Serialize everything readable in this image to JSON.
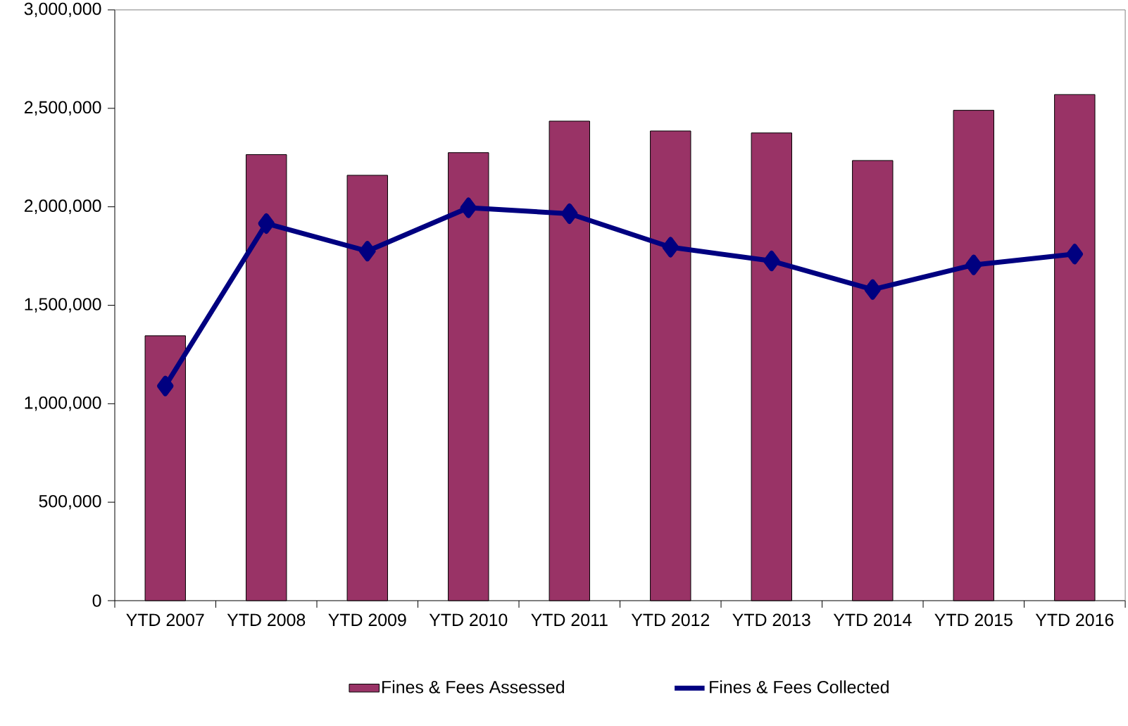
{
  "chart_data": {
    "type": "bar",
    "categories": [
      "YTD 2007",
      "YTD 2008",
      "YTD 2009",
      "YTD 2010",
      "YTD 2011",
      "YTD 2012",
      "YTD 2013",
      "YTD 2014",
      "YTD 2015",
      "YTD 2016"
    ],
    "series": [
      {
        "name": "Fines & Fees Assessed",
        "color": "#993366",
        "values": [
          1345000,
          2265000,
          2160000,
          2275000,
          2435000,
          2385000,
          2375000,
          2235000,
          2490000,
          2570000
        ]
      },
      {
        "name": "Fines & Fees Collected",
        "type": "line",
        "color": "#000080",
        "marker": "diamond",
        "values": [
          1090000,
          1915000,
          1775000,
          1995000,
          1965000,
          1795000,
          1725000,
          1580000,
          1705000,
          1760000
        ]
      }
    ],
    "ylim": [
      0,
      3000000
    ],
    "yticks": [
      {
        "value": 0,
        "label": "0"
      },
      {
        "value": 500000,
        "label": "500,000"
      },
      {
        "value": 1000000,
        "label": "1,000,000"
      },
      {
        "value": 1500000,
        "label": "1,500,000"
      },
      {
        "value": 2000000,
        "label": "2,000,000"
      },
      {
        "value": 2500000,
        "label": "2,500,000"
      },
      {
        "value": 3000000,
        "label": "3,000,000"
      }
    ],
    "legend": "bottom",
    "grid": false
  }
}
